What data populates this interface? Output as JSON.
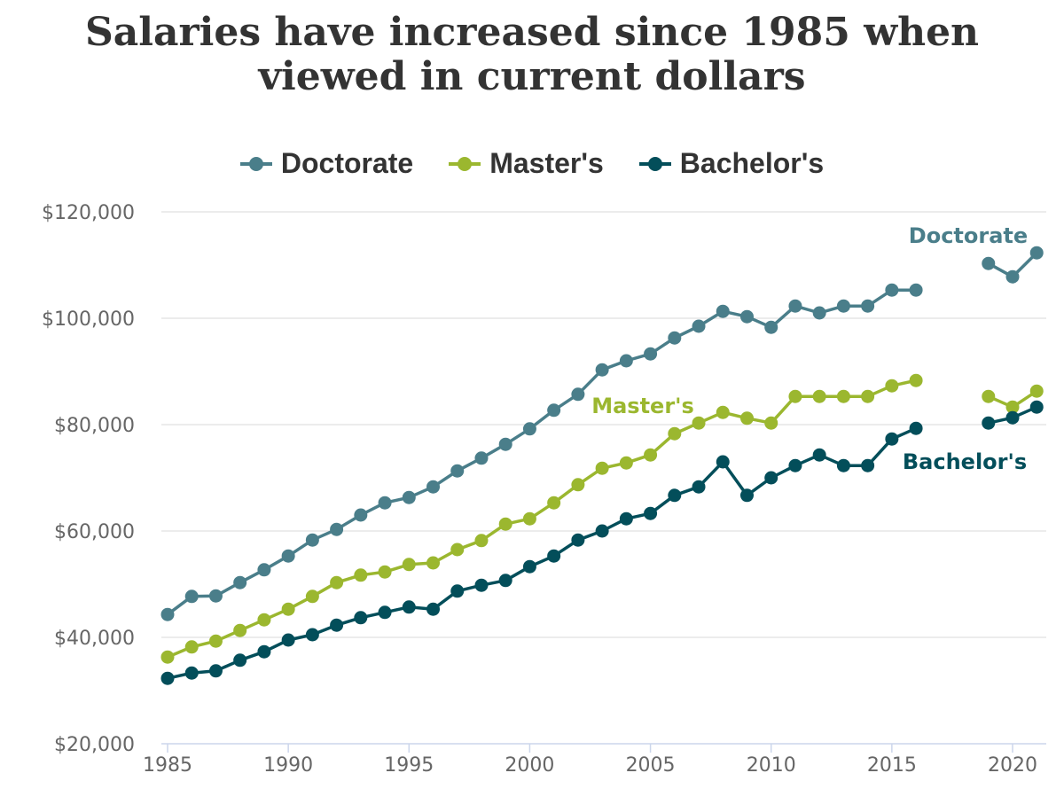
{
  "chart_data": {
    "type": "line",
    "title_line1": "Salaries have increased since 1985 when",
    "title_line2": "viewed in current dollars",
    "xlabel": "",
    "ylabel": "",
    "xlim": [
      1985,
      2021
    ],
    "ylim": [
      20000,
      120000
    ],
    "xticks": [
      1985,
      1990,
      1995,
      2000,
      2005,
      2010,
      2015,
      2020
    ],
    "yticks": [
      20000,
      40000,
      60000,
      80000,
      100000,
      120000
    ],
    "ytick_labels": [
      "$20,000",
      "$40,000",
      "$60,000",
      "$80,000",
      "$100,000",
      "$120,000"
    ],
    "grid": "horizontal",
    "legend_position": "top",
    "x": [
      1985,
      1986,
      1987,
      1988,
      1989,
      1990,
      1991,
      1992,
      1993,
      1994,
      1995,
      1996,
      1997,
      1998,
      1999,
      2000,
      2001,
      2002,
      2003,
      2004,
      2005,
      2006,
      2007,
      2008,
      2009,
      2010,
      2011,
      2012,
      2013,
      2014,
      2015,
      2016,
      2017,
      2018,
      2019,
      2020,
      2021
    ],
    "series": [
      {
        "name": "Doctorate",
        "color": "#4a7e8a",
        "values": [
          44300,
          47700,
          47800,
          50300,
          52700,
          55300,
          58300,
          60300,
          63000,
          65300,
          66300,
          68300,
          71300,
          73700,
          76300,
          79200,
          82700,
          85700,
          90300,
          92000,
          93300,
          96300,
          98500,
          101300,
          100300,
          98300,
          102300,
          101000,
          102300,
          102300,
          105300,
          105300,
          null,
          null,
          110300,
          107800,
          112300
        ]
      },
      {
        "name": "Master's",
        "color": "#9bb72f",
        "values": [
          36300,
          38200,
          39300,
          41300,
          43300,
          45300,
          47700,
          50300,
          51700,
          52300,
          53700,
          54000,
          56500,
          58200,
          61300,
          62300,
          65300,
          68700,
          71800,
          72800,
          74300,
          78300,
          80300,
          82300,
          81200,
          80300,
          85300,
          85300,
          85300,
          85300,
          87300,
          88300,
          null,
          null,
          85300,
          83300,
          86300
        ]
      },
      {
        "name": "Bachelor's",
        "color": "#034e5a",
        "values": [
          32300,
          33300,
          33700,
          35700,
          37300,
          39500,
          40500,
          42300,
          43700,
          44700,
          45700,
          45300,
          48700,
          49800,
          50700,
          53300,
          55300,
          58300,
          60000,
          62300,
          63300,
          66700,
          68300,
          73000,
          66700,
          70000,
          72300,
          74300,
          72300,
          72300,
          77300,
          79300,
          null,
          null,
          80300,
          81300,
          83300
        ]
      }
    ],
    "annotations": [
      "Doctorate",
      "Master's",
      "Bachelor's"
    ]
  }
}
